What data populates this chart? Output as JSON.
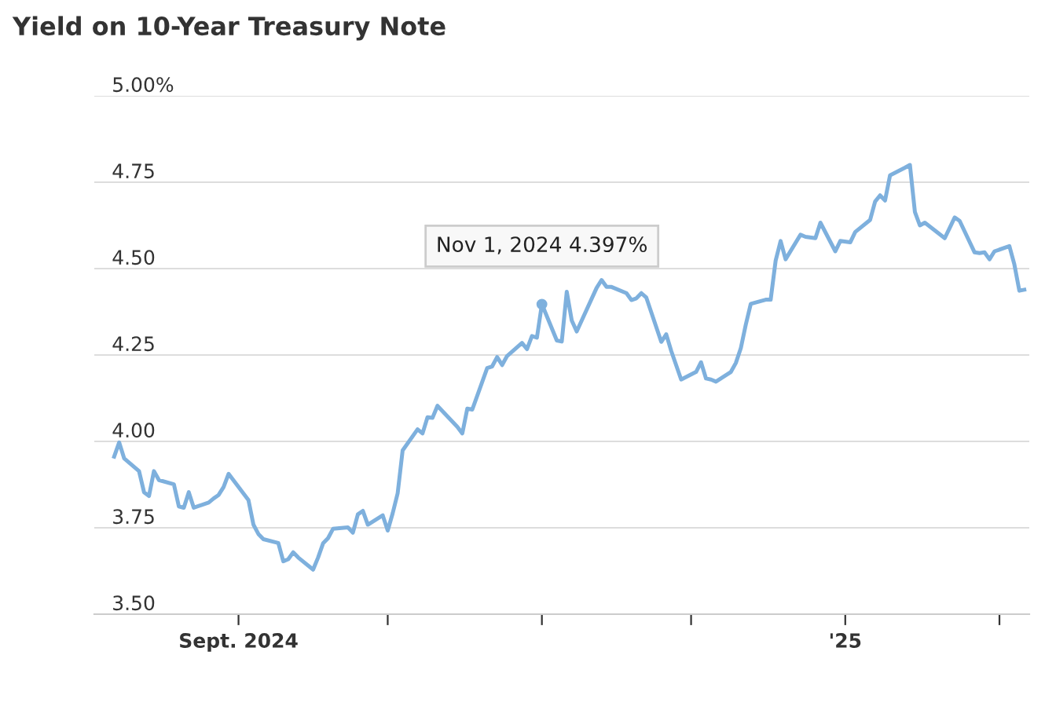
{
  "chart_data": {
    "type": "line",
    "title": "Yield on 10-Year Treasury Note",
    "x": [
      "2024-08-07",
      "2024-08-08",
      "2024-08-09",
      "2024-08-12",
      "2024-08-13",
      "2024-08-14",
      "2024-08-15",
      "2024-08-16",
      "2024-08-19",
      "2024-08-20",
      "2024-08-21",
      "2024-08-22",
      "2024-08-23",
      "2024-08-26",
      "2024-08-27",
      "2024-08-28",
      "2024-08-29",
      "2024-08-30",
      "2024-09-03",
      "2024-09-04",
      "2024-09-05",
      "2024-09-06",
      "2024-09-09",
      "2024-09-10",
      "2024-09-11",
      "2024-09-12",
      "2024-09-13",
      "2024-09-16",
      "2024-09-17",
      "2024-09-18",
      "2024-09-19",
      "2024-09-20",
      "2024-09-23",
      "2024-09-24",
      "2024-09-25",
      "2024-09-26",
      "2024-09-27",
      "2024-09-30",
      "2024-10-01",
      "2024-10-02",
      "2024-10-03",
      "2024-10-04",
      "2024-10-07",
      "2024-10-08",
      "2024-10-09",
      "2024-10-10",
      "2024-10-11",
      "2024-10-15",
      "2024-10-16",
      "2024-10-17",
      "2024-10-18",
      "2024-10-21",
      "2024-10-22",
      "2024-10-23",
      "2024-10-24",
      "2024-10-25",
      "2024-10-28",
      "2024-10-29",
      "2024-10-30",
      "2024-10-31",
      "2024-11-01",
      "2024-11-04",
      "2024-11-05",
      "2024-11-06",
      "2024-11-07",
      "2024-11-08",
      "2024-11-12",
      "2024-11-13",
      "2024-11-14",
      "2024-11-15",
      "2024-11-18",
      "2024-11-19",
      "2024-11-20",
      "2024-11-21",
      "2024-11-22",
      "2024-11-25",
      "2024-11-26",
      "2024-11-27",
      "2024-11-29",
      "2024-12-02",
      "2024-12-03",
      "2024-12-04",
      "2024-12-05",
      "2024-12-06",
      "2024-12-09",
      "2024-12-10",
      "2024-12-11",
      "2024-12-12",
      "2024-12-13",
      "2024-12-16",
      "2024-12-17",
      "2024-12-18",
      "2024-12-19",
      "2024-12-20",
      "2024-12-23",
      "2024-12-24",
      "2024-12-26",
      "2024-12-27",
      "2024-12-30",
      "2024-12-31",
      "2025-01-02",
      "2025-01-03",
      "2025-01-06",
      "2025-01-07",
      "2025-01-08",
      "2025-01-09",
      "2025-01-10",
      "2025-01-13",
      "2025-01-14",
      "2025-01-15",
      "2025-01-16",
      "2025-01-17",
      "2025-01-21",
      "2025-01-22",
      "2025-01-23",
      "2025-01-24",
      "2025-01-27",
      "2025-01-28",
      "2025-01-29",
      "2025-01-30",
      "2025-01-31",
      "2025-02-03",
      "2025-02-04",
      "2025-02-05",
      "2025-02-06"
    ],
    "series": [
      {
        "color": "#7eb0dd",
        "values": [
          3.956,
          3.997,
          3.951,
          3.914,
          3.853,
          3.842,
          3.914,
          3.888,
          3.876,
          3.812,
          3.808,
          3.853,
          3.808,
          3.823,
          3.835,
          3.845,
          3.868,
          3.906,
          3.83,
          3.759,
          3.732,
          3.717,
          3.706,
          3.653,
          3.659,
          3.679,
          3.664,
          3.629,
          3.664,
          3.705,
          3.72,
          3.747,
          3.751,
          3.736,
          3.789,
          3.799,
          3.759,
          3.786,
          3.742,
          3.792,
          3.85,
          3.974,
          4.035,
          4.023,
          4.07,
          4.068,
          4.103,
          4.042,
          4.023,
          4.095,
          4.092,
          4.212,
          4.217,
          4.244,
          4.221,
          4.247,
          4.285,
          4.267,
          4.305,
          4.3,
          4.397,
          4.292,
          4.289,
          4.433,
          4.35,
          4.318,
          4.444,
          4.467,
          4.447,
          4.447,
          4.429,
          4.409,
          4.414,
          4.429,
          4.416,
          4.288,
          4.31,
          4.262,
          4.179,
          4.201,
          4.229,
          4.182,
          4.179,
          4.173,
          4.201,
          4.227,
          4.27,
          4.338,
          4.398,
          4.41,
          4.41,
          4.523,
          4.58,
          4.527,
          4.598,
          4.592,
          4.588,
          4.633,
          4.55,
          4.58,
          4.576,
          4.606,
          4.641,
          4.694,
          4.712,
          4.697,
          4.77,
          4.792,
          4.8,
          4.664,
          4.625,
          4.633,
          4.588,
          4.618,
          4.648,
          4.638,
          4.547,
          4.545,
          4.547,
          4.527,
          4.55,
          4.565,
          4.512,
          4.436,
          4.439
        ]
      }
    ],
    "xlim": [
      "2024-08-03",
      "2025-02-07"
    ],
    "xticks": [
      {
        "value": "2024-09-01",
        "label": "Sept. 2024"
      },
      {
        "value": "2024-10-01",
        "label": null
      },
      {
        "value": "2024-11-01",
        "label": null
      },
      {
        "value": "2024-12-01",
        "label": null
      },
      {
        "value": "2025-01-01",
        "label": "'25"
      },
      {
        "value": "2025-02-01",
        "label": null
      }
    ],
    "ylim": [
      3.5,
      5.0
    ],
    "yticks": [
      {
        "value": 3.5,
        "label": "3.50"
      },
      {
        "value": 3.75,
        "label": "3.75"
      },
      {
        "value": 4.0,
        "label": "4.00"
      },
      {
        "value": 4.25,
        "label": "4.25"
      },
      {
        "value": 4.5,
        "label": "4.50"
      },
      {
        "value": 4.75,
        "label": "4.75"
      },
      {
        "value": 5.0,
        "label": "5.00%"
      }
    ],
    "grid": "y",
    "line_style": "solid",
    "marker": "none",
    "annotations": [
      {
        "text": "Nov 1, 2024 4.397%",
        "x": "2024-11-01",
        "y": 4.397
      }
    ]
  }
}
